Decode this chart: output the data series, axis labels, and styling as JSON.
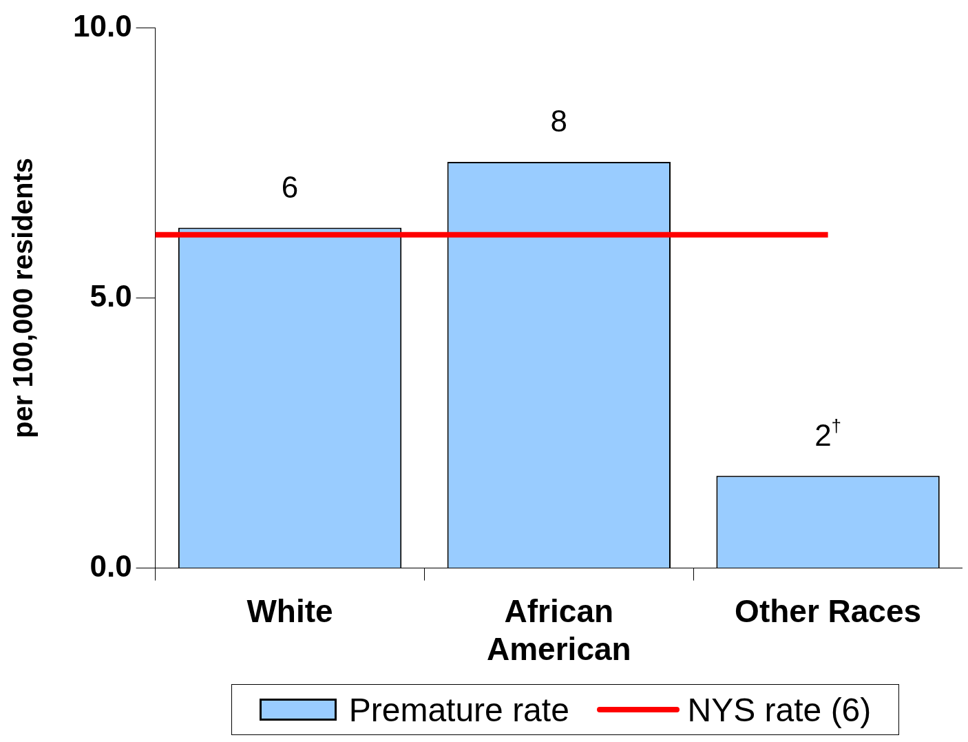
{
  "chart_data": {
    "type": "bar",
    "ylabel": "per 100,000 residents",
    "categories": [
      "White",
      "African American",
      "Other Races"
    ],
    "series": [
      {
        "name": "Premature rate",
        "color": "#99ccff",
        "values": [
          6.3,
          7.52,
          1.71
        ],
        "value_labels": [
          "6",
          "8",
          "2$^{†}$"
        ]
      }
    ],
    "ylim": [
      0,
      10
    ],
    "yticks": [
      {
        "value": 0,
        "label": "0.0"
      },
      {
        "value": 5,
        "label": "5.0"
      },
      {
        "value": 10,
        "label": "10.0"
      }
    ],
    "ref_lines": [
      {
        "axis": "y",
        "value": 6.17,
        "label": "NYS rate (6)",
        "color": "#ff0000"
      }
    ],
    "grid": false,
    "legend": "bottom"
  }
}
